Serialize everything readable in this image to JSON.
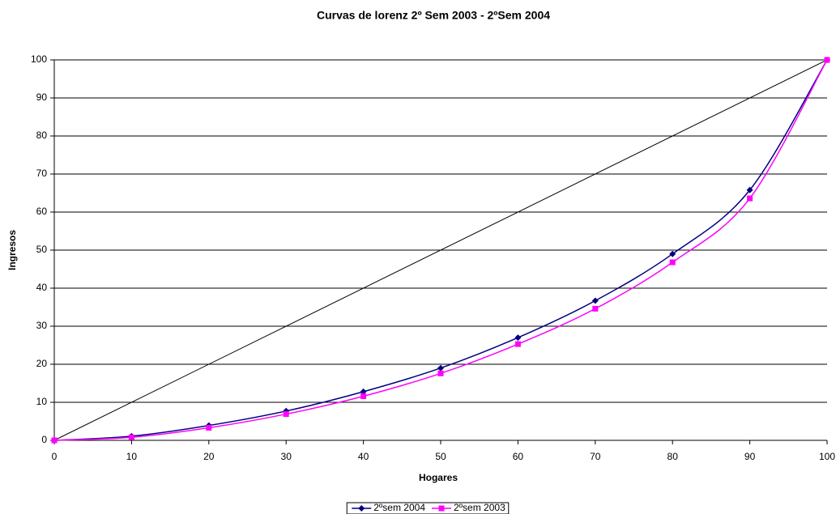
{
  "chart_data": {
    "type": "line",
    "title": "Curvas de lorenz 2º Sem 2003 - 2ºSem 2004",
    "x_label": "Hogares",
    "y_label": "Ingresos",
    "x": [
      0,
      10,
      20,
      30,
      40,
      50,
      60,
      70,
      80,
      90,
      100
    ],
    "series": [
      {
        "name": "2ºsem 2004",
        "color": "#000080",
        "marker": "diamond",
        "values": [
          0,
          1.1,
          3.9,
          7.7,
          12.8,
          19.0,
          27.0,
          36.7,
          49.0,
          65.8,
          100
        ]
      },
      {
        "name": "2ºsem 2003",
        "color": "#ff00ff",
        "marker": "square",
        "values": [
          0,
          0.8,
          3.3,
          6.9,
          11.6,
          17.6,
          25.3,
          34.6,
          46.8,
          63.6,
          100
        ]
      }
    ],
    "reference_line": {
      "x": [
        0,
        100
      ],
      "values": [
        0,
        100
      ],
      "color": "#000000"
    },
    "xlim": [
      0,
      100
    ],
    "xticks": [
      0,
      10,
      20,
      30,
      40,
      50,
      60,
      70,
      80,
      90,
      100
    ],
    "ylim": [
      0,
      100
    ],
    "yticks": [
      0,
      10,
      20,
      30,
      40,
      50,
      60,
      70,
      80,
      90,
      100
    ],
    "grid": true,
    "smooth": true,
    "legend": "bottom"
  }
}
